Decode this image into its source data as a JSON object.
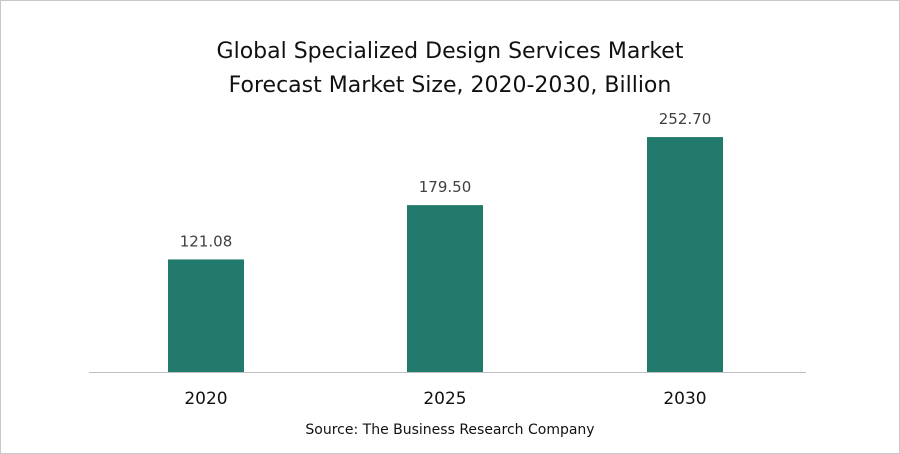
{
  "chart_data": {
    "type": "bar",
    "title_line1": "Global Specialized Design Services Market",
    "title_line2": "Forecast Market Size, 2020-2030, Billion",
    "categories": [
      "2020",
      "2025",
      "2030"
    ],
    "values": [
      121.08,
      179.5,
      252.7
    ],
    "value_labels": [
      "121.08",
      "179.50",
      "252.70"
    ],
    "bar_color": "#217a6b",
    "axis_color": "#bfbfbf",
    "grid": false,
    "legend": "none",
    "ylim": [
      0,
      270
    ],
    "source": "Source: The Business Research Company"
  }
}
